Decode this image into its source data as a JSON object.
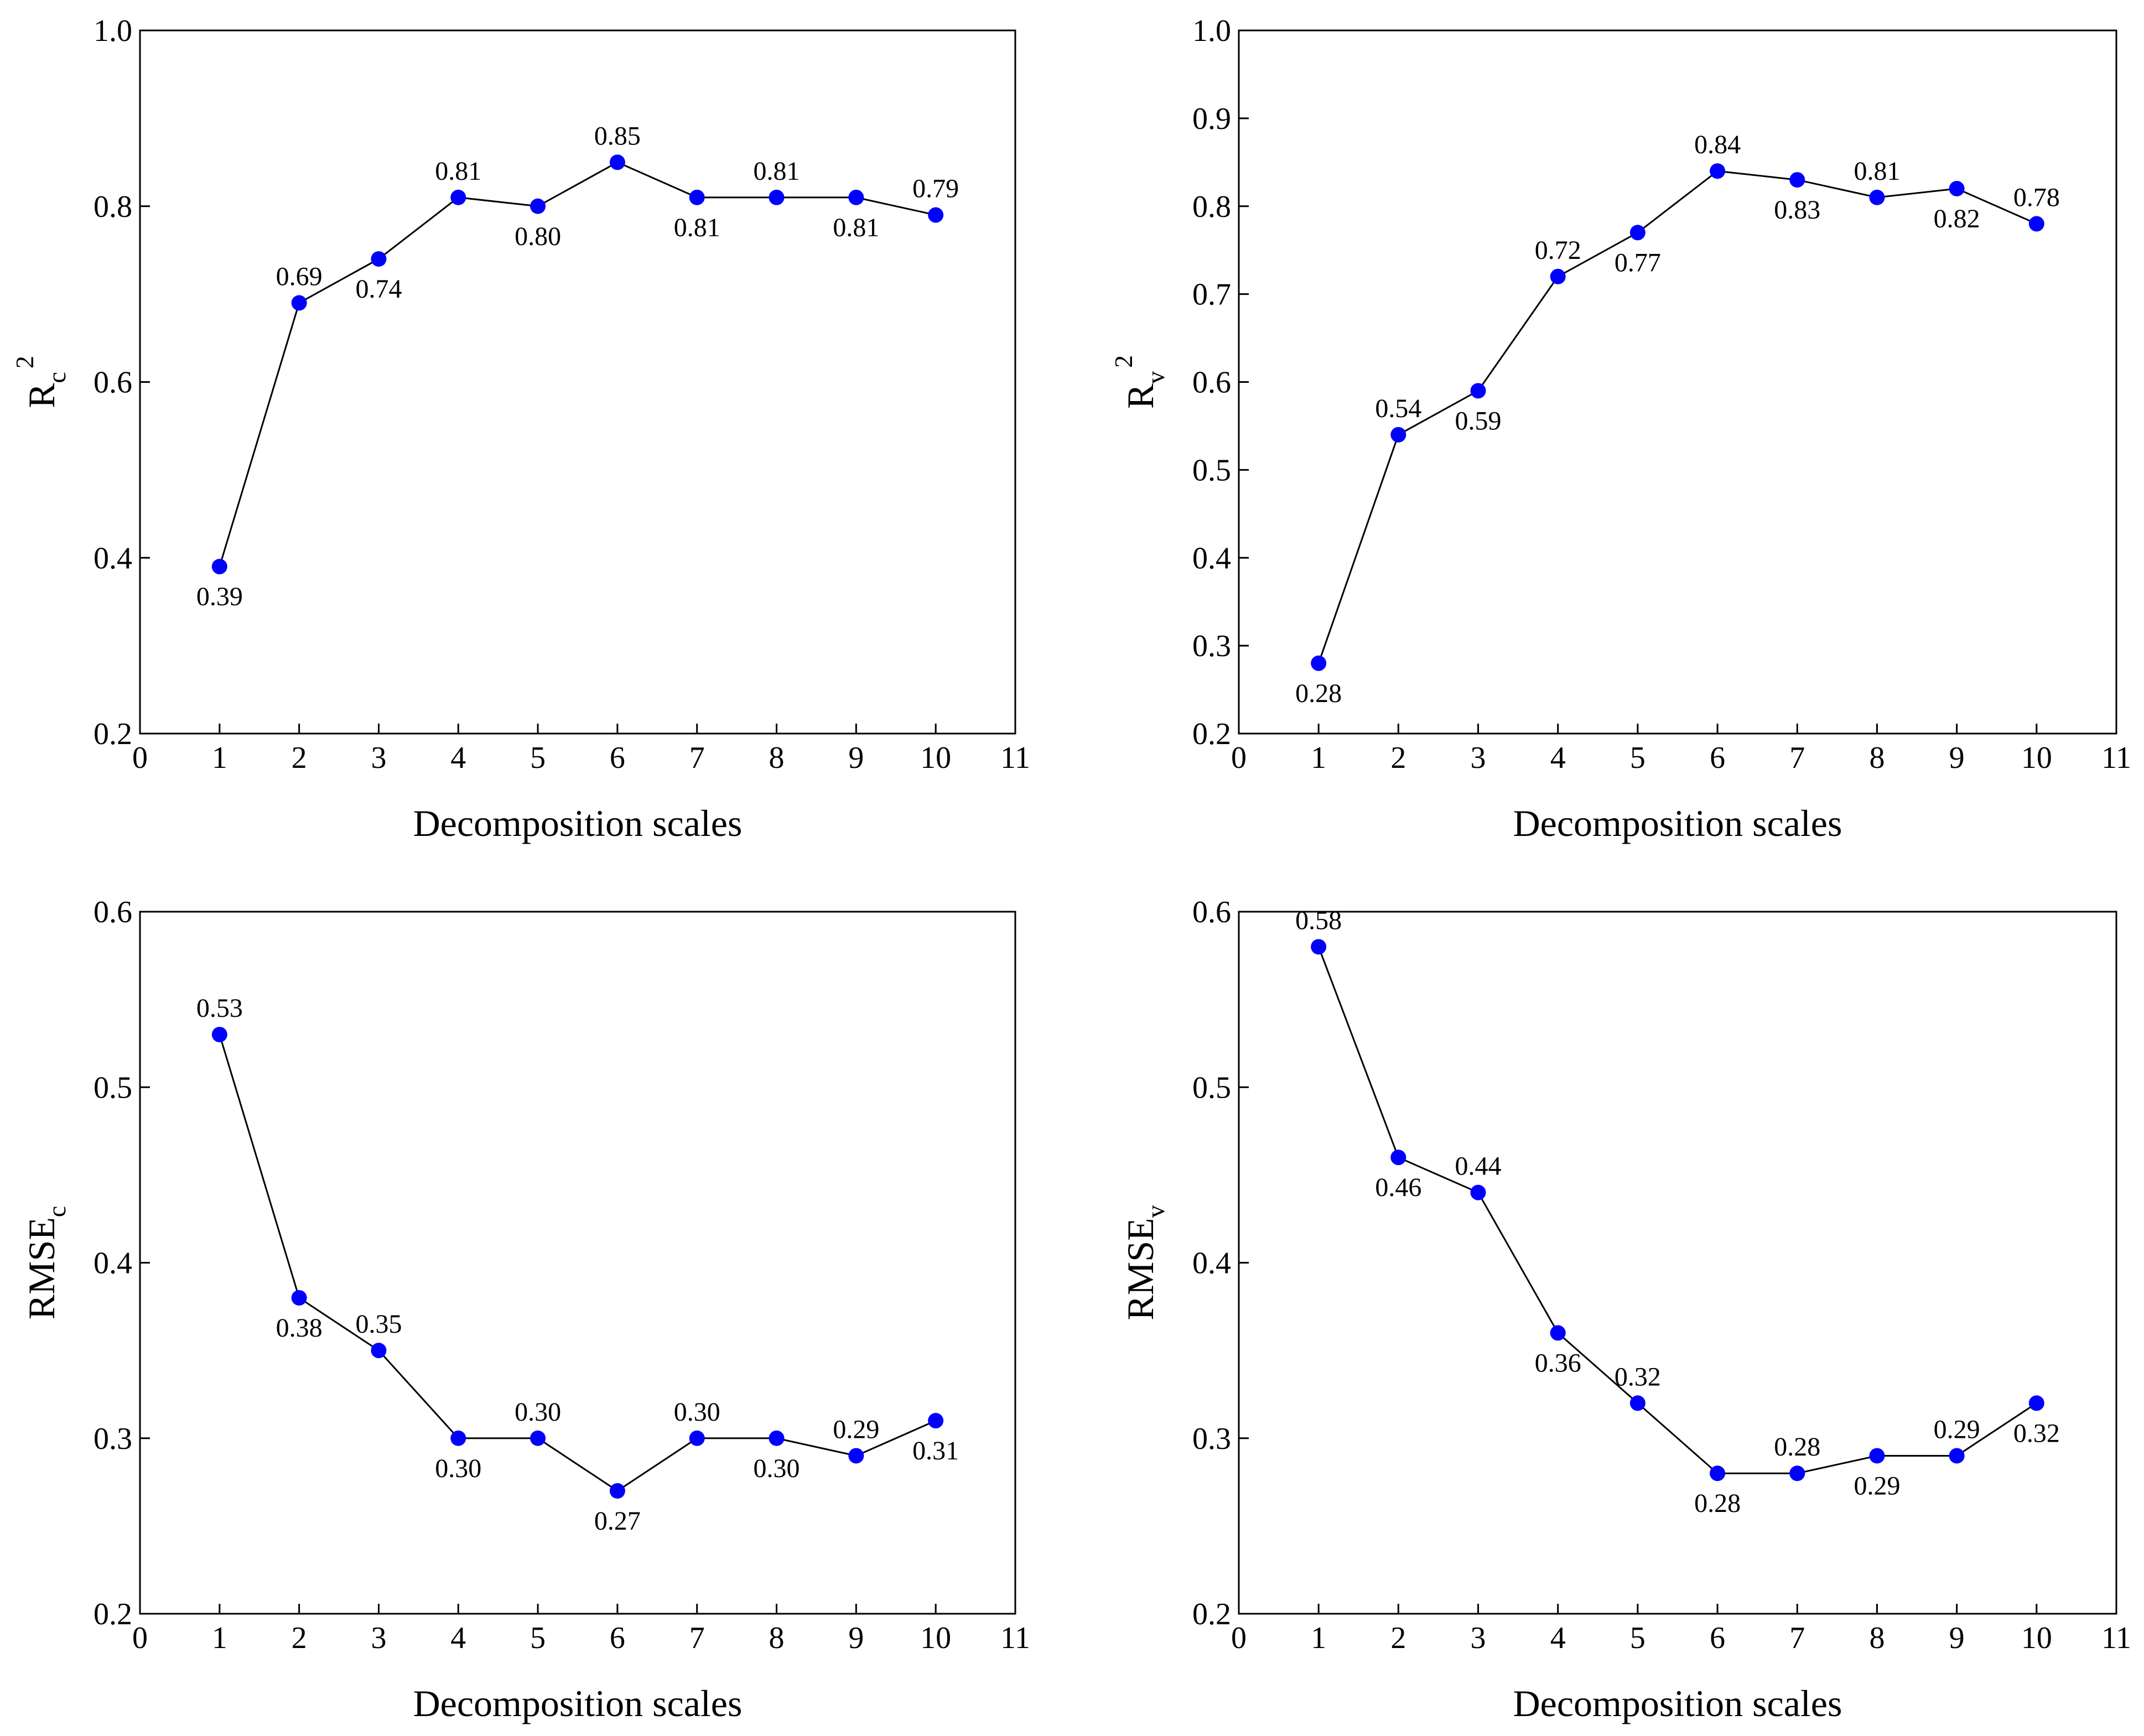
{
  "chart_data": [
    {
      "type": "line",
      "xlabel": "Decomposition scales",
      "ylabel": {
        "main": "R",
        "sub": "c",
        "sup": "2"
      },
      "xlim": [
        0,
        11
      ],
      "ylim": [
        0.2,
        1.0
      ],
      "xticks": [
        "0",
        "1",
        "2",
        "3",
        "4",
        "5",
        "6",
        "7",
        "8",
        "9",
        "10",
        "11"
      ],
      "yticks": [
        "0.2",
        "0.4",
        "0.6",
        "0.8",
        "1.0"
      ],
      "color": "#0000ff",
      "x": [
        1,
        2,
        3,
        4,
        5,
        6,
        7,
        8,
        9,
        10
      ],
      "values": [
        0.39,
        0.69,
        0.74,
        0.81,
        0.8,
        0.85,
        0.81,
        0.81,
        0.81,
        0.79
      ],
      "data_labels": [
        "0.39",
        "0.69",
        "0.74",
        "0.81",
        "0.80",
        "0.85",
        "0.81",
        "0.81",
        "0.81",
        "0.79"
      ],
      "label_side": [
        "below",
        "above",
        "below",
        "above",
        "below",
        "above",
        "below",
        "above",
        "below",
        "above"
      ]
    },
    {
      "type": "line",
      "xlabel": "Decomposition scales",
      "ylabel": {
        "main": "R",
        "sub": "v",
        "sup": "2"
      },
      "xlim": [
        0,
        11
      ],
      "ylim": [
        0.2,
        1.0
      ],
      "xticks": [
        "0",
        "1",
        "2",
        "3",
        "4",
        "5",
        "6",
        "7",
        "8",
        "9",
        "10",
        "11"
      ],
      "yticks": [
        "0.2",
        "0.3",
        "0.4",
        "0.5",
        "0.6",
        "0.7",
        "0.8",
        "0.9",
        "1.0"
      ],
      "color": "#0000ff",
      "x": [
        1,
        2,
        3,
        4,
        5,
        6,
        7,
        8,
        9,
        10
      ],
      "values": [
        0.28,
        0.54,
        0.59,
        0.72,
        0.77,
        0.84,
        0.83,
        0.81,
        0.82,
        0.78
      ],
      "data_labels": [
        "0.28",
        "0.54",
        "0.59",
        "0.72",
        "0.77",
        "0.84",
        "0.83",
        "0.81",
        "0.82",
        "0.78"
      ],
      "label_side": [
        "below",
        "above",
        "below",
        "above",
        "below",
        "above",
        "below",
        "above",
        "below",
        "above"
      ]
    },
    {
      "type": "line",
      "xlabel": "Decomposition scales",
      "ylabel": {
        "main": "RMSE",
        "sub": "c",
        "sup": ""
      },
      "xlim": [
        0,
        11
      ],
      "ylim": [
        0.2,
        0.6
      ],
      "xticks": [
        "0",
        "1",
        "2",
        "3",
        "4",
        "5",
        "6",
        "7",
        "8",
        "9",
        "10",
        "11"
      ],
      "yticks": [
        "0.2",
        "0.3",
        "0.4",
        "0.5",
        "0.6"
      ],
      "color": "#0000ff",
      "x": [
        1,
        2,
        3,
        4,
        5,
        6,
        7,
        8,
        9,
        10
      ],
      "values": [
        0.53,
        0.38,
        0.35,
        0.3,
        0.3,
        0.27,
        0.3,
        0.3,
        0.29,
        0.31
      ],
      "data_labels": [
        "0.53",
        "0.38",
        "0.35",
        "0.30",
        "0.30",
        "0.27",
        "0.30",
        "0.30",
        "0.29",
        "0.31"
      ],
      "label_side": [
        "above",
        "below",
        "above",
        "below",
        "above",
        "below",
        "above",
        "below",
        "above",
        "below"
      ]
    },
    {
      "type": "line",
      "xlabel": "Decomposition scales",
      "ylabel": {
        "main": "RMSE",
        "sub": "v",
        "sup": ""
      },
      "xlim": [
        0,
        11
      ],
      "ylim": [
        0.2,
        0.6
      ],
      "xticks": [
        "0",
        "1",
        "2",
        "3",
        "4",
        "5",
        "6",
        "7",
        "8",
        "9",
        "10",
        "11"
      ],
      "yticks": [
        "0.2",
        "0.3",
        "0.4",
        "0.5",
        "0.6"
      ],
      "color": "#0000ff",
      "x": [
        1,
        2,
        3,
        4,
        5,
        6,
        7,
        8,
        9,
        10
      ],
      "values": [
        0.58,
        0.46,
        0.44,
        0.36,
        0.32,
        0.28,
        0.28,
        0.29,
        0.29,
        0.32
      ],
      "data_labels": [
        "0.58",
        "0.46",
        "0.44",
        "0.36",
        "0.32",
        "0.28",
        "0.28",
        "0.29",
        "0.29",
        "0.32"
      ],
      "label_side": [
        "above",
        "below",
        "above",
        "below",
        "above",
        "below",
        "above",
        "below",
        "above",
        "below"
      ]
    }
  ]
}
